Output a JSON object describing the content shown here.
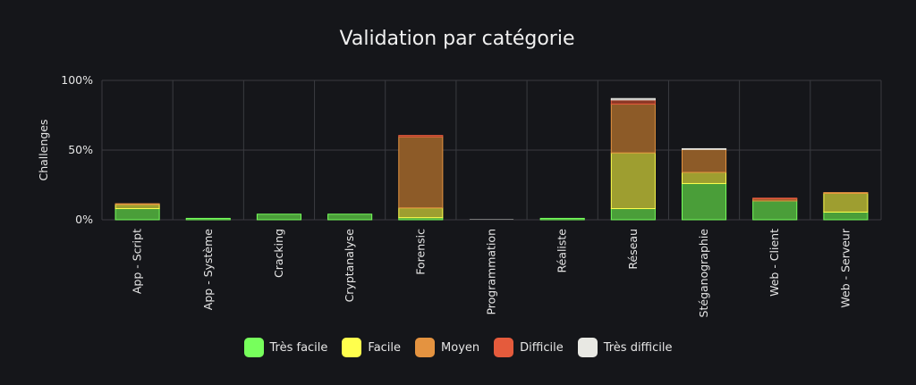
{
  "chart_data": {
    "type": "bar",
    "stacked": true,
    "title": "Validation par catégorie",
    "ylabel": "Challenges",
    "xlabel": "",
    "ylim": [
      0,
      100
    ],
    "yticks": [
      {
        "value": 0,
        "label": "0%"
      },
      {
        "value": 50,
        "label": "50%"
      },
      {
        "value": 100,
        "label": "100%"
      }
    ],
    "categories": [
      "App - Script",
      "App - Système",
      "Cracking",
      "Cryptanalyse",
      "Forensic",
      "Programmation",
      "Réaliste",
      "Réseau",
      "Stéganographie",
      "Web - Client",
      "Web - Serveur"
    ],
    "series": [
      {
        "name": "Très facile",
        "color": "#77ff5c",
        "values": [
          8,
          1,
          4,
          4,
          1.5,
          0,
          1,
          8,
          26,
          13.5,
          5.5
        ]
      },
      {
        "name": "Facile",
        "color": "#ffff4d",
        "values": [
          3,
          0,
          0,
          0,
          7,
          0,
          0,
          40,
          8,
          0,
          13.5
        ]
      },
      {
        "name": "Moyen",
        "color": "#e49340",
        "values": [
          0.5,
          0,
          0,
          0,
          51,
          0,
          0,
          35,
          16.5,
          1.5,
          0.5
        ]
      },
      {
        "name": "Difficile",
        "color": "#e55b3c",
        "values": [
          0,
          0,
          0,
          0,
          1,
          0,
          0,
          3,
          0,
          0.5,
          0
        ]
      },
      {
        "name": "Très difficile",
        "color": "#e8e8e3",
        "values": [
          0,
          0,
          0,
          0,
          0,
          0,
          0,
          1,
          0.5,
          0,
          0
        ]
      }
    ],
    "legend_position": "bottom",
    "grid": true
  }
}
